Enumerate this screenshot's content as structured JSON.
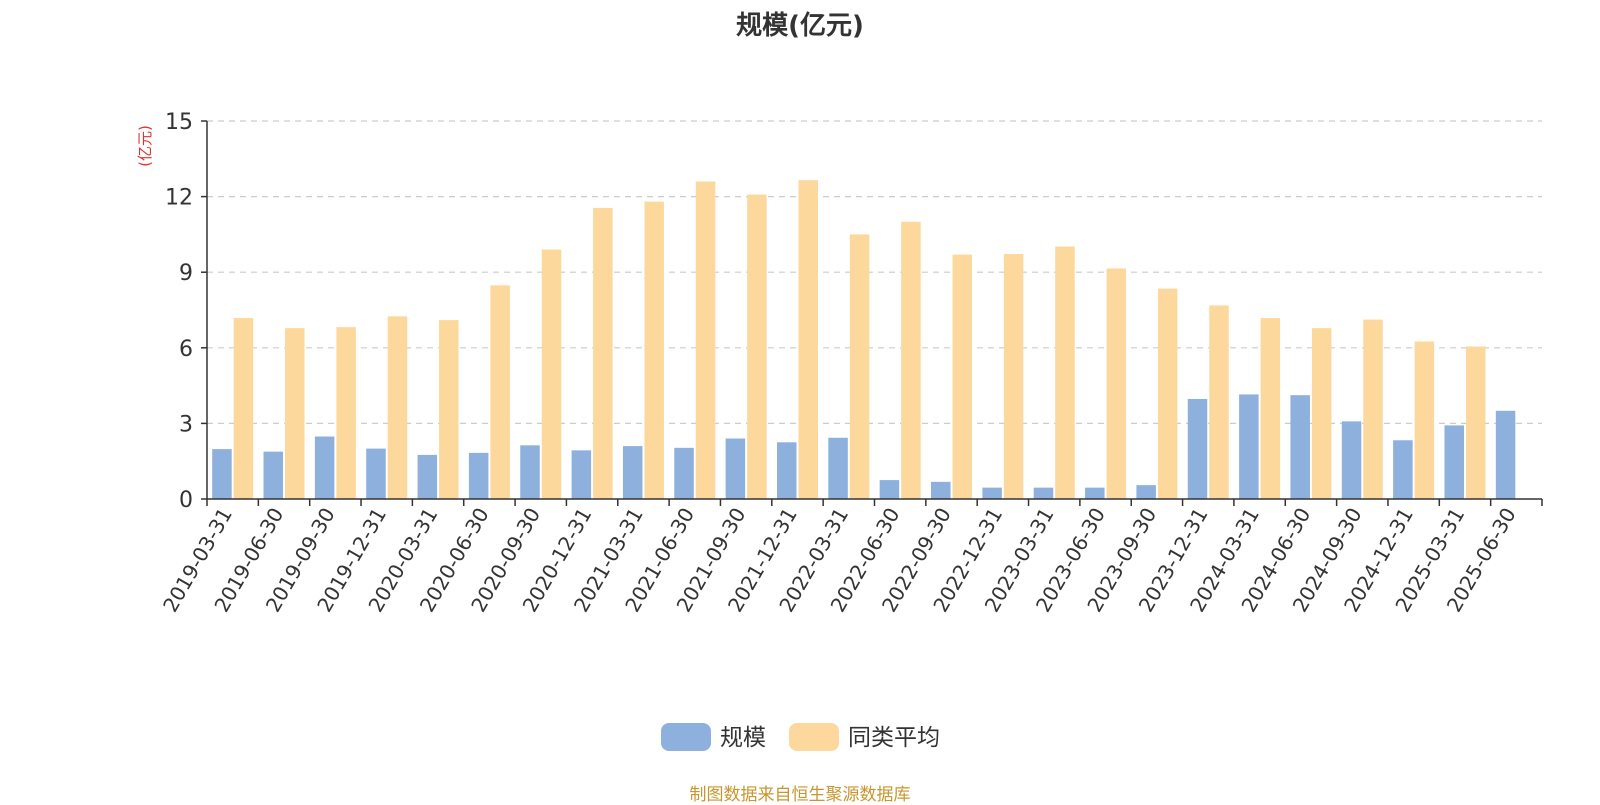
{
  "title": "规模(亿元)",
  "source_note": "制图数据来自恒生聚源数据库",
  "colors": {
    "series1": "#8eb0dc",
    "series2": "#fdd89c",
    "unit": "#e03030",
    "axis": "#333333",
    "grid": "#cccccc",
    "source": "#c8962e"
  },
  "chart_data": {
    "type": "bar",
    "title": "规模(亿元)",
    "ylabel": "(亿元)",
    "ylim": [
      0,
      15
    ],
    "yticks": [
      0,
      3,
      6,
      9,
      12,
      15
    ],
    "grid": true,
    "legend_position": "bottom",
    "categories": [
      "2019-03-31",
      "2019-06-30",
      "2019-09-30",
      "2019-12-31",
      "2020-03-31",
      "2020-06-30",
      "2020-09-30",
      "2020-12-31",
      "2021-03-31",
      "2021-06-30",
      "2021-09-30",
      "2021-12-31",
      "2022-03-31",
      "2022-06-30",
      "2022-09-30",
      "2022-12-31",
      "2023-03-31",
      "2023-06-30",
      "2023-09-30",
      "2023-12-31",
      "2024-03-31",
      "2024-06-30",
      "2024-09-30",
      "2024-12-31",
      "2025-03-31",
      "2025-06-30"
    ],
    "series": [
      {
        "name": "规模",
        "values": [
          1.98,
          1.88,
          2.48,
          2.0,
          1.75,
          1.83,
          2.13,
          1.93,
          2.1,
          2.03,
          2.4,
          2.25,
          2.43,
          0.75,
          0.68,
          0.45,
          0.45,
          0.45,
          0.55,
          3.97,
          4.15,
          4.12,
          3.08,
          2.33,
          2.92,
          3.5
        ]
      },
      {
        "name": "同类平均",
        "values": [
          7.18,
          6.78,
          6.82,
          7.25,
          7.1,
          8.48,
          9.9,
          11.55,
          11.8,
          12.6,
          12.08,
          12.65,
          10.5,
          11.0,
          9.7,
          9.72,
          10.02,
          9.15,
          8.35,
          7.68,
          7.18,
          6.78,
          7.12,
          6.25,
          6.05,
          null
        ]
      }
    ]
  }
}
